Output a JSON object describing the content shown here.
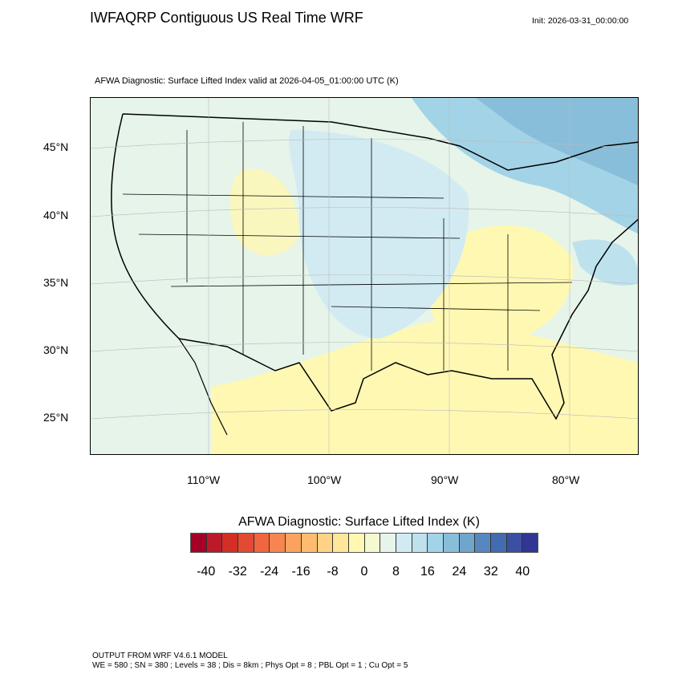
{
  "header": {
    "title": "IWFAQRP Contiguous US Real Time WRF",
    "init": "Init: 2026-03-31_00:00:00",
    "subtitle": "AFWA Diagnostic: Surface Lifted Index valid at 2026-04-05_01:00:00 UTC   (K)"
  },
  "map": {
    "lat_labels": [
      "45°N",
      "40°N",
      "35°N",
      "30°N",
      "25°N"
    ],
    "lon_labels": [
      "110°W",
      "100°W",
      "90°W",
      "80°W"
    ]
  },
  "colorbar": {
    "title": "AFWA Diagnostic: Surface Lifted Index  (K)",
    "labels": [
      "-40",
      "-32",
      "-24",
      "-16",
      "-8",
      "0",
      "8",
      "16",
      "24",
      "32",
      "40"
    ],
    "colors": [
      "#a50026",
      "#bb1a2b",
      "#d42f26",
      "#e34a33",
      "#f06640",
      "#f7854f",
      "#fba35e",
      "#fdbc6f",
      "#fed385",
      "#fee79a",
      "#fff8b3",
      "#f3f9d0",
      "#e6f4ea",
      "#d2ebf2",
      "#bde2ee",
      "#a3d3e6",
      "#88bed9",
      "#6fa6cc",
      "#5688bf",
      "#436cb0",
      "#3b50a3",
      "#313695"
    ]
  },
  "footer": {
    "line1": "OUTPUT FROM WRF V4.6.1 MODEL",
    "line2": "WE = 580 ; SN = 380 ; Levels = 38 ; Dis = 8km ; Phys Opt = 8 ; PBL Opt = 1 ; Cu Opt = 5"
  }
}
